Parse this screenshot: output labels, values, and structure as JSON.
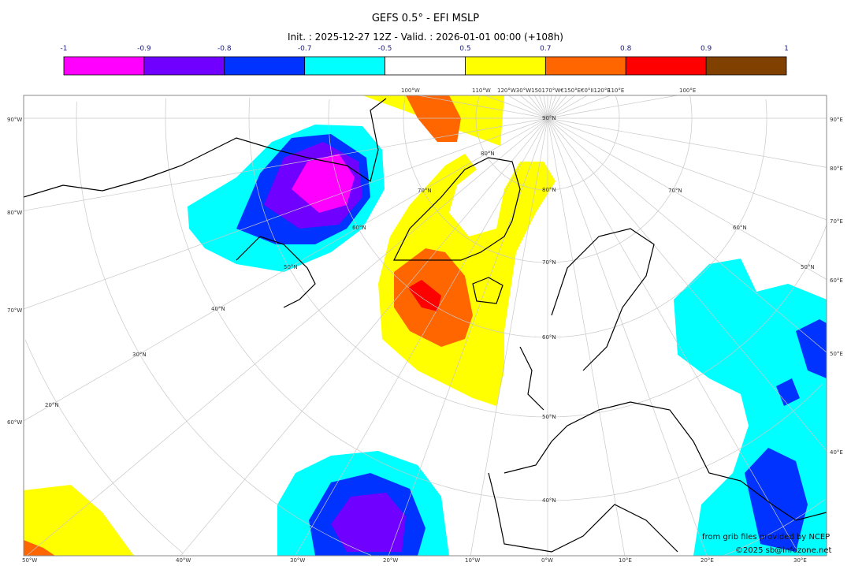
{
  "title": "GEFS 0.5° - EFI MSLP",
  "subtitle": "Init. : 2025-12-27 12Z - Valid. : 2026-01-01 00:00 (+108h)",
  "colorbar": {
    "ticks": [
      "-1",
      "-0.9",
      "-0.8",
      "-0.7",
      "-0.5",
      "0.5",
      "0.7",
      "0.8",
      "0.9",
      "1"
    ],
    "colors": [
      "#ff00ff",
      "#7000ff",
      "#0033ff",
      "#00ffff",
      "#ffffff",
      "#ffff00",
      "#ff6600",
      "#ff0000",
      "#804000"
    ]
  },
  "axes": {
    "top": [
      "100°W",
      "110°W",
      "120°W30°W150170°W€150°E€0°II120°E",
      "110°E",
      "100°E"
    ],
    "left": [
      "90°W",
      "80°W",
      "70°W",
      "60°W"
    ],
    "right": [
      "90°E",
      "80°E",
      "70°E",
      "60°E",
      "50°E",
      "40°E"
    ],
    "bottom": [
      "50°W",
      "40°W",
      "30°W",
      "20°W",
      "10°W",
      "0°W",
      "10°E",
      "20°E",
      "30°E"
    ],
    "lat_labels": [
      "90°N",
      "80°N",
      "80°N",
      "70°N",
      "70°N",
      "70°N",
      "60°N",
      "60°N",
      "60°N",
      "50°N",
      "50°N",
      "50°N",
      "40°N",
      "40°N",
      "30°N",
      "20°N"
    ]
  },
  "credits": {
    "line1": "from grib files provided by NCEP",
    "line2": "©2025 sb@infozone.net"
  }
}
